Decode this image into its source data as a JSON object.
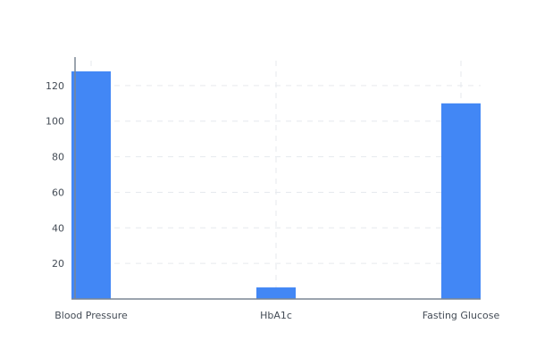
{
  "chart_data": {
    "type": "bar",
    "title": "",
    "xlabel": "",
    "ylabel": "",
    "categories": [
      "Blood Pressure",
      "HbA1c",
      "Fasting Glucose"
    ],
    "values": [
      128,
      6.5,
      110
    ],
    "ylim": [
      0,
      136
    ],
    "yticks": [
      20,
      40,
      60,
      80,
      100,
      120
    ],
    "grid": true,
    "colors": {
      "bar": "#4287f5",
      "grid": "#e6e9ee",
      "axis": "#7a8694",
      "text": "#444c56"
    }
  }
}
